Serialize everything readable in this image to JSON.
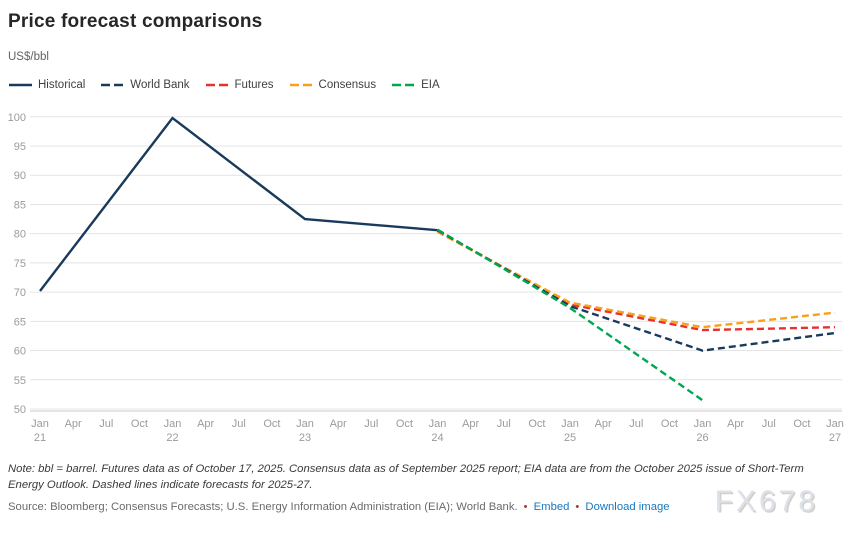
{
  "page": {
    "title": "Price forecast comparisons",
    "subtitle": "US$/bbl",
    "note": "Note: bbl = barrel. Futures data as of October 17, 2025. Consensus data as of September 2025 report; EIA data are from the October 2025 issue of Short-Term Energy Outlook. Dashed lines indicate forecasts for 2025-27.",
    "source_text": "Source: Bloomberg; Consensus Forecasts; U.S. Energy Information Administration (EIA); World Bank.",
    "bullet": "•",
    "embed_label": "Embed",
    "download_label": "Download image",
    "watermark": "FX678"
  },
  "colors": {
    "grid": "#e4e4e4",
    "axis_line": "#c9c9c9",
    "tick_text": "#9b9b9b",
    "link": "#1878c0",
    "bullet": "#9b3c31",
    "watermark": "#dde1e8"
  },
  "chart_data": {
    "type": "line",
    "title": "Price forecast comparisons",
    "xlabel": "",
    "ylabel": "US$/bbl",
    "ylim": [
      50,
      100
    ],
    "y_ticks": [
      50,
      55,
      60,
      65,
      70,
      75,
      80,
      85,
      90,
      95,
      100
    ],
    "grid": "horizontal",
    "legend_position": "top-left",
    "x_unit": "quarter index, 0 = Jan 2021 ... 24 = Jan 2027",
    "x_ticks": [
      {
        "m": "Jan",
        "y": "21"
      },
      {
        "m": "Apr"
      },
      {
        "m": "Jul"
      },
      {
        "m": "Oct"
      },
      {
        "m": "Jan",
        "y": "22"
      },
      {
        "m": "Apr"
      },
      {
        "m": "Jul"
      },
      {
        "m": "Oct"
      },
      {
        "m": "Jan",
        "y": "23"
      },
      {
        "m": "Apr"
      },
      {
        "m": "Jul"
      },
      {
        "m": "Oct"
      },
      {
        "m": "Jan",
        "y": "24"
      },
      {
        "m": "Apr"
      },
      {
        "m": "Jul"
      },
      {
        "m": "Oct"
      },
      {
        "m": "Jan",
        "y": "25"
      },
      {
        "m": "Apr"
      },
      {
        "m": "Jul"
      },
      {
        "m": "Oct"
      },
      {
        "m": "Jan",
        "y": "26"
      },
      {
        "m": "Apr"
      },
      {
        "m": "Jul"
      },
      {
        "m": "Oct"
      },
      {
        "m": "Jan",
        "y": "27"
      }
    ],
    "series": [
      {
        "name": "Historical",
        "color": "#1a3a5c",
        "dashed": false,
        "points": [
          [
            0,
            70.2
          ],
          [
            4,
            99.8
          ],
          [
            8,
            82.5
          ],
          [
            12,
            80.6
          ]
        ]
      },
      {
        "name": "World Bank",
        "color": "#1a3a5c",
        "dashed": true,
        "points": [
          [
            12,
            80.6
          ],
          [
            16,
            67.6
          ],
          [
            20,
            60.0
          ],
          [
            24,
            63.0
          ]
        ]
      },
      {
        "name": "Futures",
        "color": "#e8312f",
        "dashed": true,
        "points": [
          [
            12,
            80.5
          ],
          [
            16,
            67.9
          ],
          [
            20,
            63.5
          ],
          [
            24,
            64.0
          ]
        ]
      },
      {
        "name": "Consensus",
        "color": "#f7a11a",
        "dashed": true,
        "points": [
          [
            12,
            80.3
          ],
          [
            16,
            68.2
          ],
          [
            20,
            64.0
          ],
          [
            24,
            66.5
          ]
        ]
      },
      {
        "name": "EIA",
        "color": "#00a651",
        "dashed": true,
        "points": [
          [
            12,
            80.7
          ],
          [
            16,
            67.3
          ],
          [
            20,
            51.5
          ]
        ]
      }
    ],
    "draw_order": [
      "Historical",
      "Futures",
      "Consensus",
      "World Bank",
      "EIA"
    ]
  }
}
